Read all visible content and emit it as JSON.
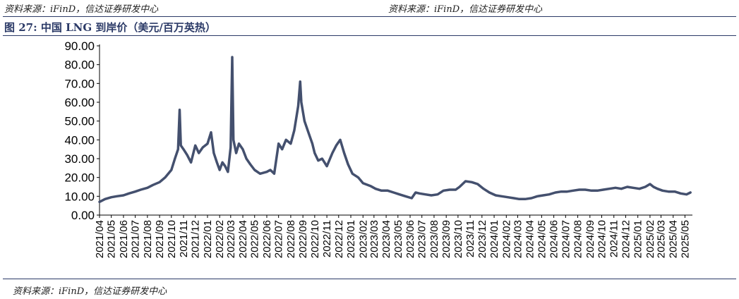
{
  "source_top_left": "资料来源：iFinD，信达证券研发中心",
  "source_top_right": "资料来源：iFinD，信达证券研发中心",
  "figure_title": "图 27:  中国 LNG 到岸价（美元/百万英热）",
  "source_bottom": "资料来源：iFinD，信达证券研发中心",
  "colors": {
    "line": "#44506e",
    "title": "#2b3a67",
    "axis": "#000000"
  },
  "chart_data": {
    "type": "line",
    "title": "中国 LNG 到岸价（美元/百万英热）",
    "xlabel": "",
    "ylabel": "",
    "ylim": [
      0,
      90
    ],
    "yticks": [
      "0.00",
      "10.00",
      "20.00",
      "30.00",
      "40.00",
      "50.00",
      "60.00",
      "70.00",
      "80.00",
      "90.00"
    ],
    "xticks": [
      "2021/04",
      "2021/05",
      "2021/06",
      "2021/07",
      "2021/08",
      "2021/09",
      "2021/10",
      "2021/11",
      "2021/12",
      "2022/01",
      "2022/02",
      "2022/03",
      "2022/04",
      "2022/05",
      "2022/06",
      "2022/07",
      "2022/08",
      "2022/09",
      "2022/10",
      "2022/11",
      "2022/12",
      "2023/01",
      "2023/02",
      "2023/03",
      "2023/04",
      "2023/05",
      "2023/06",
      "2023/07",
      "2023/08",
      "2023/09",
      "2023/10",
      "2023/11",
      "2023/12",
      "2024/01",
      "2024/02",
      "2024/03",
      "2024/04",
      "2024/05",
      "2024/06",
      "2024/07",
      "2024/08",
      "2024/09",
      "2024/10",
      "2024/11",
      "2024/12",
      "2025/01",
      "2025/02",
      "2025/03",
      "2025/04",
      "2025/05"
    ],
    "grid": false,
    "legend": "none",
    "series": [
      {
        "points": [
          [
            "2021-04-01",
            7.0
          ],
          [
            "2021-04-15",
            8.5
          ],
          [
            "2021-05-01",
            9.5
          ],
          [
            "2021-05-15",
            10.0
          ],
          [
            "2021-06-01",
            10.5
          ],
          [
            "2021-06-15",
            11.5
          ],
          [
            "2021-07-01",
            12.5
          ],
          [
            "2021-07-15",
            13.5
          ],
          [
            "2021-08-01",
            14.5
          ],
          [
            "2021-08-15",
            16.0
          ],
          [
            "2021-09-01",
            17.5
          ],
          [
            "2021-09-15",
            20.0
          ],
          [
            "2021-10-01",
            24.0
          ],
          [
            "2021-10-10",
            30.0
          ],
          [
            "2021-10-18",
            35.0
          ],
          [
            "2021-10-22",
            56.0
          ],
          [
            "2021-10-25",
            37.0
          ],
          [
            "2021-11-01",
            35.0
          ],
          [
            "2021-11-10",
            32.0
          ],
          [
            "2021-11-20",
            28.0
          ],
          [
            "2021-12-01",
            37.0
          ],
          [
            "2021-12-10",
            33.0
          ],
          [
            "2021-12-20",
            36.0
          ],
          [
            "2022-01-01",
            38.0
          ],
          [
            "2022-01-10",
            44.0
          ],
          [
            "2022-01-17",
            33.0
          ],
          [
            "2022-01-25",
            28.0
          ],
          [
            "2022-02-01",
            24.0
          ],
          [
            "2022-02-08",
            28.0
          ],
          [
            "2022-02-15",
            26.0
          ],
          [
            "2022-02-22",
            23.0
          ],
          [
            "2022-03-01",
            36.0
          ],
          [
            "2022-03-03",
            60.0
          ],
          [
            "2022-03-05",
            84.0
          ],
          [
            "2022-03-08",
            40.0
          ],
          [
            "2022-03-15",
            33.0
          ],
          [
            "2022-03-22",
            38.0
          ],
          [
            "2022-04-01",
            35.0
          ],
          [
            "2022-04-10",
            30.0
          ],
          [
            "2022-04-20",
            27.0
          ],
          [
            "2022-05-01",
            24.0
          ],
          [
            "2022-05-15",
            22.0
          ],
          [
            "2022-06-01",
            23.0
          ],
          [
            "2022-06-10",
            24.0
          ],
          [
            "2022-06-20",
            22.0
          ],
          [
            "2022-07-01",
            38.0
          ],
          [
            "2022-07-10",
            35.0
          ],
          [
            "2022-07-20",
            40.0
          ],
          [
            "2022-08-01",
            38.0
          ],
          [
            "2022-08-10",
            45.0
          ],
          [
            "2022-08-20",
            58.0
          ],
          [
            "2022-08-25",
            71.0
          ],
          [
            "2022-08-28",
            60.0
          ],
          [
            "2022-09-05",
            50.0
          ],
          [
            "2022-09-15",
            44.0
          ],
          [
            "2022-09-25",
            38.0
          ],
          [
            "2022-10-01",
            33.0
          ],
          [
            "2022-10-10",
            29.0
          ],
          [
            "2022-10-20",
            30.0
          ],
          [
            "2022-11-01",
            26.0
          ],
          [
            "2022-11-15",
            33.0
          ],
          [
            "2022-11-25",
            37.0
          ],
          [
            "2022-12-05",
            40.0
          ],
          [
            "2022-12-15",
            33.0
          ],
          [
            "2022-12-25",
            27.0
          ],
          [
            "2023-01-05",
            22.0
          ],
          [
            "2023-01-20",
            20.0
          ],
          [
            "2023-02-01",
            17.0
          ],
          [
            "2023-02-20",
            15.5
          ],
          [
            "2023-03-05",
            14.0
          ],
          [
            "2023-03-20",
            13.0
          ],
          [
            "2023-04-05",
            13.0
          ],
          [
            "2023-04-20",
            12.0
          ],
          [
            "2023-05-05",
            11.0
          ],
          [
            "2023-05-20",
            10.0
          ],
          [
            "2023-06-05",
            9.0
          ],
          [
            "2023-06-15",
            12.0
          ],
          [
            "2023-06-25",
            11.5
          ],
          [
            "2023-07-10",
            11.0
          ],
          [
            "2023-07-25",
            10.5
          ],
          [
            "2023-08-10",
            11.0
          ],
          [
            "2023-08-25",
            13.0
          ],
          [
            "2023-09-10",
            13.5
          ],
          [
            "2023-09-25",
            13.5
          ],
          [
            "2023-10-05",
            15.0
          ],
          [
            "2023-10-20",
            18.0
          ],
          [
            "2023-11-05",
            17.5
          ],
          [
            "2023-11-20",
            16.5
          ],
          [
            "2023-12-05",
            14.0
          ],
          [
            "2023-12-20",
            12.0
          ],
          [
            "2024-01-05",
            10.5
          ],
          [
            "2024-01-20",
            10.0
          ],
          [
            "2024-02-05",
            9.5
          ],
          [
            "2024-02-20",
            9.0
          ],
          [
            "2024-03-05",
            8.5
          ],
          [
            "2024-03-20",
            8.5
          ],
          [
            "2024-04-05",
            9.0
          ],
          [
            "2024-04-20",
            10.0
          ],
          [
            "2024-05-05",
            10.5
          ],
          [
            "2024-05-20",
            11.0
          ],
          [
            "2024-06-05",
            12.0
          ],
          [
            "2024-06-20",
            12.5
          ],
          [
            "2024-07-05",
            12.5
          ],
          [
            "2024-07-20",
            13.0
          ],
          [
            "2024-08-05",
            13.5
          ],
          [
            "2024-08-20",
            13.5
          ],
          [
            "2024-09-05",
            13.0
          ],
          [
            "2024-09-20",
            13.0
          ],
          [
            "2024-10-05",
            13.5
          ],
          [
            "2024-10-20",
            14.0
          ],
          [
            "2024-11-05",
            14.5
          ],
          [
            "2024-11-20",
            14.0
          ],
          [
            "2024-12-05",
            15.0
          ],
          [
            "2024-12-20",
            14.5
          ],
          [
            "2025-01-05",
            14.0
          ],
          [
            "2025-01-20",
            15.0
          ],
          [
            "2025-02-01",
            16.5
          ],
          [
            "2025-02-10",
            15.0
          ],
          [
            "2025-02-20",
            14.0
          ],
          [
            "2025-03-05",
            13.0
          ],
          [
            "2025-03-20",
            12.5
          ],
          [
            "2025-04-05",
            12.5
          ],
          [
            "2025-04-20",
            11.5
          ],
          [
            "2025-05-05",
            11.0
          ],
          [
            "2025-05-15",
            12.0
          ]
        ]
      }
    ]
  }
}
